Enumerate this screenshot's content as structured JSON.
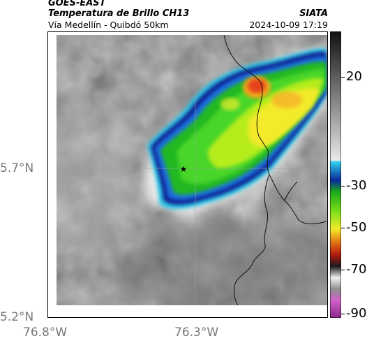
{
  "header": {
    "satellite": "GOES-EAST",
    "product": "Temperatura de Brillo CH13",
    "subtitle": "Vía Medellín - Quibdó 50km",
    "organization": "SIATA",
    "datetime": "2024-10-09 17:19"
  },
  "axes": {
    "lat_ticks": [
      "5.7°N",
      "5.2°N"
    ],
    "lon_ticks": [
      "76.8°W",
      "76.3°W"
    ]
  },
  "colorbar": {
    "ticks": [
      "20",
      "-30",
      "-50",
      "-70",
      "-90"
    ]
  },
  "marker": {
    "symbol": "★",
    "type": "star-marker"
  }
}
